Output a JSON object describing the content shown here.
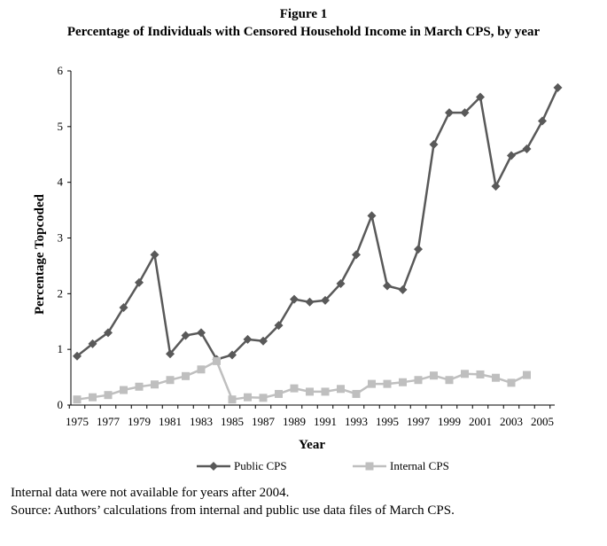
{
  "figure_label": "Figure 1",
  "notes": [
    "Internal data were not available for years after 2004.",
    "Source: Authors’ calculations from internal and public use data files of March CPS."
  ],
  "colors": {
    "public": "#595959",
    "internal": "#bfbfbf",
    "axis": "#000000"
  },
  "chart_data": {
    "type": "line",
    "title": "Percentage of Individuals with Censored Household Income in March CPS, by year",
    "xlabel": "Year",
    "ylabel": "Percentage Topcoded",
    "ylim": [
      0,
      6
    ],
    "yticks": [
      0,
      1,
      2,
      3,
      4,
      5,
      6
    ],
    "xlim": [
      1975,
      2006
    ],
    "xticks": [
      1975,
      1977,
      1979,
      1981,
      1983,
      1985,
      1987,
      1989,
      1991,
      1993,
      1995,
      1997,
      1999,
      2001,
      2003,
      2005
    ],
    "grid": false,
    "legend": "bottom",
    "series": [
      {
        "name": "Public CPS",
        "marker": "diamond",
        "x": [
          1975,
          1976,
          1977,
          1978,
          1979,
          1980,
          1981,
          1982,
          1983,
          1984,
          1985,
          1986,
          1987,
          1988,
          1989,
          1990,
          1991,
          1992,
          1993,
          1994,
          1995,
          1996,
          1997,
          1998,
          1999,
          2000,
          2001,
          2002,
          2003,
          2004,
          2005,
          2006
        ],
        "values": [
          0.88,
          1.1,
          1.3,
          1.75,
          2.2,
          2.7,
          0.92,
          1.25,
          1.3,
          0.82,
          0.9,
          1.18,
          1.15,
          1.43,
          1.9,
          1.85,
          1.88,
          2.18,
          2.7,
          3.4,
          2.14,
          2.07,
          2.8,
          4.68,
          5.25,
          5.25,
          5.53,
          3.93,
          4.48,
          4.6,
          5.1,
          5.7
        ]
      },
      {
        "name": "Internal CPS",
        "marker": "square",
        "x": [
          1975,
          1976,
          1977,
          1978,
          1979,
          1980,
          1981,
          1982,
          1983,
          1984,
          1985,
          1986,
          1987,
          1988,
          1989,
          1990,
          1991,
          1992,
          1993,
          1994,
          1995,
          1996,
          1997,
          1998,
          1999,
          2000,
          2001,
          2002,
          2003,
          2004
        ],
        "values": [
          0.1,
          0.14,
          0.18,
          0.27,
          0.33,
          0.37,
          0.45,
          0.52,
          0.64,
          0.79,
          0.1,
          0.14,
          0.13,
          0.2,
          0.3,
          0.24,
          0.24,
          0.29,
          0.2,
          0.38,
          0.38,
          0.41,
          0.45,
          0.53,
          0.45,
          0.56,
          0.55,
          0.49,
          0.4,
          0.54
        ]
      }
    ]
  }
}
